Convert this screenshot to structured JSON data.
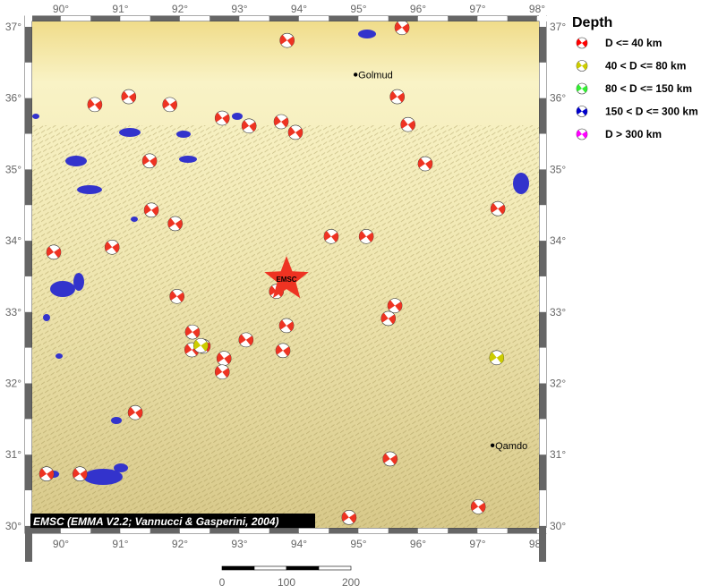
{
  "map": {
    "lon_range": [
      89.4,
      98.15
    ],
    "lat_range": [
      29.9,
      37.15
    ],
    "lon_ticks": [
      "90°",
      "91°",
      "92°",
      "93°",
      "94°",
      "95°",
      "96°",
      "97°",
      "98°"
    ],
    "lat_ticks": [
      "30°",
      "31°",
      "32°",
      "33°",
      "34°",
      "35°",
      "36°",
      "37°"
    ],
    "colors": {
      "terrain_light": "#f8f2c8",
      "terrain_dark": "#8a7a30",
      "lake": "#3333cc",
      "frame_dark": "#666666"
    },
    "epicenter": {
      "label": "EMSC",
      "lon": 93.79,
      "lat": 33.46,
      "color": "#ee3322"
    },
    "cities": [
      {
        "name": "Golmud",
        "lon": 94.95,
        "lat": 36.33
      },
      {
        "name": "Qamdo",
        "lon": 97.25,
        "lat": 31.13
      }
    ],
    "mechanisms": [
      {
        "lon": 93.8,
        "lat": 36.81,
        "class": 0
      },
      {
        "lon": 95.73,
        "lat": 36.99,
        "class": 0
      },
      {
        "lon": 90.57,
        "lat": 35.91,
        "class": 0
      },
      {
        "lon": 91.14,
        "lat": 36.02,
        "class": 0
      },
      {
        "lon": 91.83,
        "lat": 35.91,
        "class": 0
      },
      {
        "lon": 92.71,
        "lat": 35.72,
        "class": 0
      },
      {
        "lon": 93.16,
        "lat": 35.61,
        "class": 0
      },
      {
        "lon": 93.7,
        "lat": 35.67,
        "class": 0
      },
      {
        "lon": 93.94,
        "lat": 35.52,
        "class": 0
      },
      {
        "lon": 95.65,
        "lat": 36.02,
        "class": 0
      },
      {
        "lon": 95.83,
        "lat": 35.63,
        "class": 0
      },
      {
        "lon": 91.49,
        "lat": 35.12,
        "class": 0
      },
      {
        "lon": 96.12,
        "lat": 35.08,
        "class": 0
      },
      {
        "lon": 91.52,
        "lat": 34.43,
        "class": 0
      },
      {
        "lon": 91.92,
        "lat": 34.24,
        "class": 0
      },
      {
        "lon": 90.86,
        "lat": 33.91,
        "class": 0
      },
      {
        "lon": 89.88,
        "lat": 33.84,
        "class": 0
      },
      {
        "lon": 94.54,
        "lat": 34.06,
        "class": 0
      },
      {
        "lon": 95.13,
        "lat": 34.06,
        "class": 0
      },
      {
        "lon": 97.34,
        "lat": 34.45,
        "class": 0
      },
      {
        "lon": 91.95,
        "lat": 33.22,
        "class": 0
      },
      {
        "lon": 93.62,
        "lat": 33.29,
        "class": 0
      },
      {
        "lon": 95.61,
        "lat": 33.09,
        "class": 0
      },
      {
        "lon": 95.5,
        "lat": 32.91,
        "class": 0
      },
      {
        "lon": 93.79,
        "lat": 32.81,
        "class": 0
      },
      {
        "lon": 92.21,
        "lat": 32.72,
        "class": 0
      },
      {
        "lon": 92.2,
        "lat": 32.47,
        "class": 0
      },
      {
        "lon": 92.39,
        "lat": 32.52,
        "class": 0
      },
      {
        "lon": 93.11,
        "lat": 32.61,
        "class": 0
      },
      {
        "lon": 92.74,
        "lat": 32.35,
        "class": 0
      },
      {
        "lon": 93.73,
        "lat": 32.46,
        "class": 0
      },
      {
        "lon": 92.71,
        "lat": 32.16,
        "class": 0
      },
      {
        "lon": 91.25,
        "lat": 31.59,
        "class": 0
      },
      {
        "lon": 89.76,
        "lat": 30.73,
        "class": 0
      },
      {
        "lon": 90.32,
        "lat": 30.73,
        "class": 0
      },
      {
        "lon": 95.53,
        "lat": 30.94,
        "class": 0
      },
      {
        "lon": 97.01,
        "lat": 30.27,
        "class": 0
      },
      {
        "lon": 94.84,
        "lat": 30.12,
        "class": 0
      },
      {
        "lon": 92.35,
        "lat": 32.53,
        "class": 1
      },
      {
        "lon": 97.32,
        "lat": 32.36,
        "class": 1
      }
    ],
    "credit": "EMSC (EMMA V2.2; Vannucci & Gasperini, 2004)"
  },
  "legend": {
    "title": "Depth",
    "items": [
      {
        "label": "D <= 40 km",
        "color": "#ff0000"
      },
      {
        "label": "40 < D <= 80 km",
        "color": "#cccc00"
      },
      {
        "label": "80 < D <= 150 km",
        "color": "#33ee33"
      },
      {
        "label": "150 < D <= 300 km",
        "color": "#0000cc"
      },
      {
        "label": "D > 300 km",
        "color": "#ff00ff"
      }
    ]
  },
  "scale_bar": {
    "labels": [
      "0",
      "100",
      "200"
    ],
    "unit_note": ""
  }
}
